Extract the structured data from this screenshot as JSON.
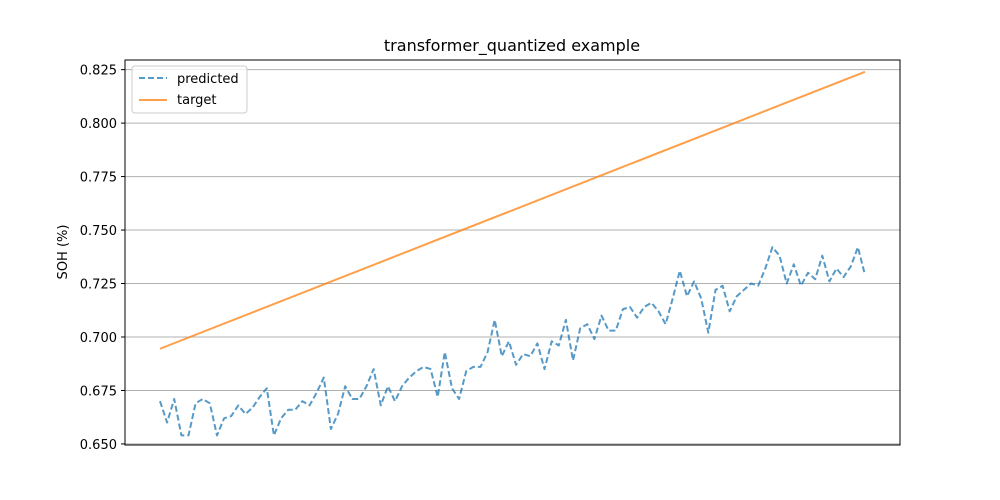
{
  "chart_data": {
    "type": "line",
    "title": "transformer_quantized example",
    "xlabel": "",
    "ylabel": "SOH (%)",
    "ylim": [
      0.6495,
      0.8295
    ],
    "yticks": [
      0.65,
      0.675,
      0.7,
      0.725,
      0.75,
      0.775,
      0.8,
      0.825
    ],
    "ytick_labels": [
      "0.650",
      "0.675",
      "0.700",
      "0.725",
      "0.750",
      "0.775",
      "0.800",
      "0.825"
    ],
    "grid": "y",
    "legend_position": "top-left",
    "series": [
      {
        "name": "predicted",
        "style": "dashed",
        "color": "#1f77b4",
        "values": [
          0.67,
          0.66,
          0.671,
          0.654,
          0.654,
          0.669,
          0.671,
          0.669,
          0.654,
          0.662,
          0.663,
          0.668,
          0.664,
          0.667,
          0.672,
          0.676,
          0.654,
          0.662,
          0.666,
          0.666,
          0.67,
          0.668,
          0.674,
          0.681,
          0.657,
          0.664,
          0.677,
          0.671,
          0.671,
          0.677,
          0.685,
          0.668,
          0.677,
          0.67,
          0.677,
          0.681,
          0.684,
          0.686,
          0.685,
          0.672,
          0.693,
          0.676,
          0.671,
          0.684,
          0.686,
          0.686,
          0.693,
          0.708,
          0.691,
          0.698,
          0.687,
          0.692,
          0.691,
          0.697,
          0.685,
          0.698,
          0.696,
          0.708,
          0.689,
          0.704,
          0.706,
          0.699,
          0.71,
          0.703,
          0.703,
          0.713,
          0.714,
          0.709,
          0.714,
          0.716,
          0.712,
          0.706,
          0.718,
          0.731,
          0.719,
          0.726,
          0.718,
          0.702,
          0.722,
          0.724,
          0.712,
          0.719,
          0.722,
          0.725,
          0.724,
          0.732,
          0.742,
          0.738,
          0.725,
          0.734,
          0.724,
          0.73,
          0.727,
          0.738,
          0.726,
          0.732,
          0.728,
          0.733,
          0.742,
          0.729
        ]
      },
      {
        "name": "target",
        "style": "solid",
        "color": "#ff7f0e",
        "start": 0.6945,
        "end": 0.824
      }
    ]
  }
}
